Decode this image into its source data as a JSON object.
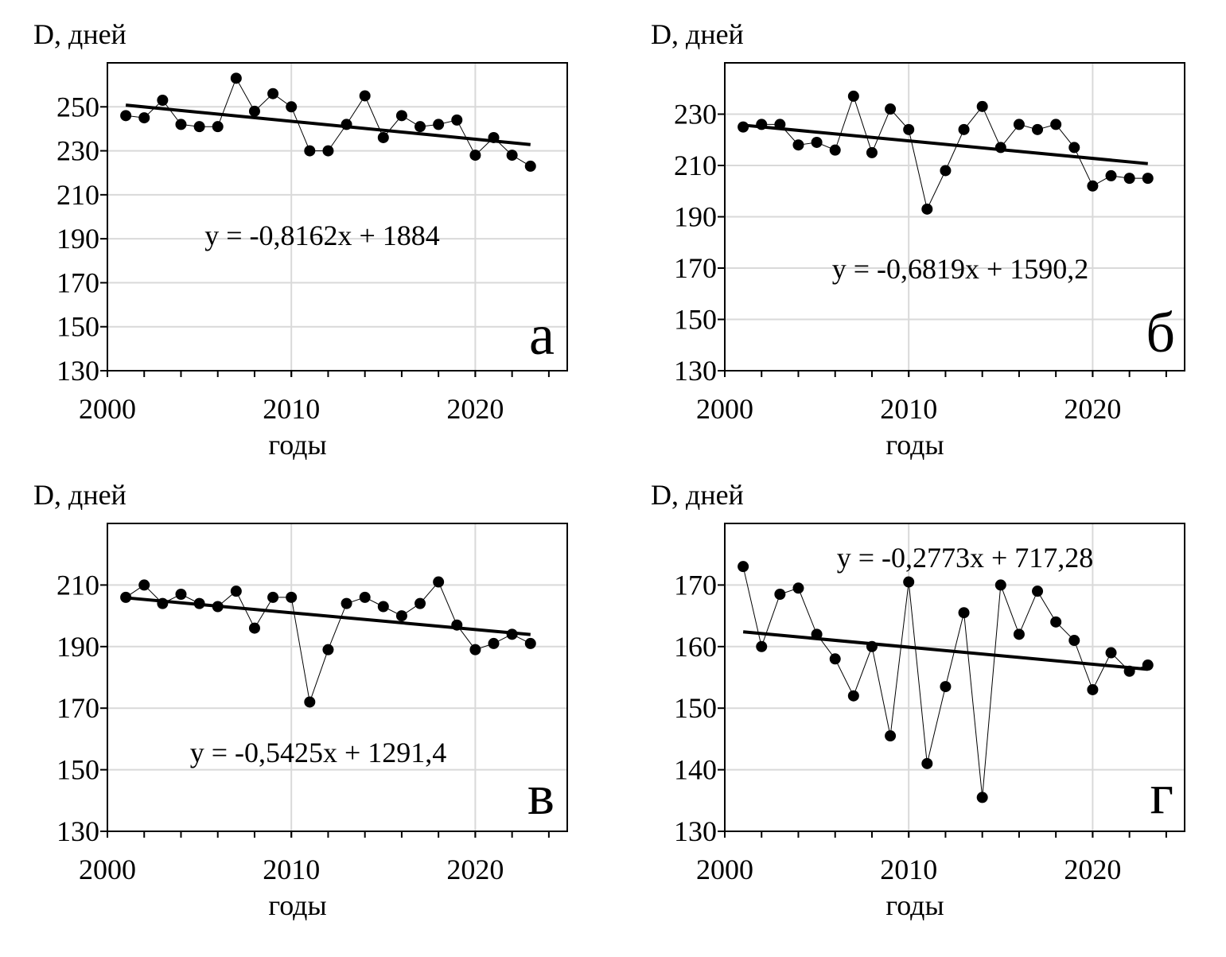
{
  "chart_data": [
    {
      "type": "line",
      "panel_letter": "а",
      "ylabel": "D, дней",
      "xlabel": "годы",
      "xlim": [
        2000,
        2025
      ],
      "ylim": [
        130,
        270
      ],
      "xticks": [
        2000,
        2010,
        2020
      ],
      "yticks": [
        130,
        150,
        170,
        190,
        210,
        230,
        250
      ],
      "grid": true,
      "equation": "y = -0,8162x + 1884",
      "trend": {
        "slope": -0.8162,
        "intercept": 1884
      },
      "series": [
        {
          "name": "D",
          "x": [
            2001,
            2002,
            2003,
            2004,
            2005,
            2006,
            2007,
            2008,
            2009,
            2010,
            2011,
            2012,
            2013,
            2014,
            2015,
            2016,
            2017,
            2018,
            2019,
            2020,
            2021,
            2022,
            2023
          ],
          "values": [
            246,
            245,
            253,
            242,
            241,
            241,
            263,
            248,
            256,
            250,
            230,
            230,
            242,
            255,
            236,
            246,
            241,
            242,
            244,
            228,
            236,
            228,
            223
          ]
        }
      ]
    },
    {
      "type": "line",
      "panel_letter": "б",
      "ylabel": "D, дней",
      "xlabel": "годы",
      "xlim": [
        2000,
        2025
      ],
      "ylim": [
        130,
        250
      ],
      "xticks": [
        2000,
        2010,
        2020
      ],
      "yticks": [
        130,
        150,
        170,
        190,
        210,
        230
      ],
      "grid": true,
      "equation": "y = -0,6819x + 1590,2",
      "trend": {
        "slope": -0.6819,
        "intercept": 1590.2
      },
      "series": [
        {
          "name": "D",
          "x": [
            2001,
            2002,
            2003,
            2004,
            2005,
            2006,
            2007,
            2008,
            2009,
            2010,
            2011,
            2012,
            2013,
            2014,
            2015,
            2016,
            2017,
            2018,
            2019,
            2020,
            2021,
            2022,
            2023
          ],
          "values": [
            225,
            226,
            226,
            218,
            219,
            216,
            237,
            215,
            232,
            224,
            193,
            208,
            224,
            233,
            217,
            226,
            224,
            226,
            217,
            202,
            206,
            205,
            205
          ]
        }
      ]
    },
    {
      "type": "line",
      "panel_letter": "в",
      "ylabel": "D, дней",
      "xlabel": "годы",
      "xlim": [
        2000,
        2025
      ],
      "ylim": [
        130,
        230
      ],
      "xticks": [
        2000,
        2010,
        2020
      ],
      "yticks": [
        130,
        150,
        170,
        190,
        210
      ],
      "grid": true,
      "equation": "y = -0,5425x + 1291,4",
      "trend": {
        "slope": -0.5425,
        "intercept": 1291.4
      },
      "series": [
        {
          "name": "D",
          "x": [
            2001,
            2002,
            2003,
            2004,
            2005,
            2006,
            2007,
            2008,
            2009,
            2010,
            2011,
            2012,
            2013,
            2014,
            2015,
            2016,
            2017,
            2018,
            2019,
            2020,
            2021,
            2022,
            2023
          ],
          "values": [
            206,
            210,
            204,
            207,
            204,
            203,
            208,
            196,
            206,
            206,
            172,
            189,
            204,
            206,
            203,
            200,
            204,
            211,
            197,
            189,
            191,
            194,
            191
          ]
        }
      ]
    },
    {
      "type": "line",
      "panel_letter": "г",
      "ylabel": "D, дней",
      "xlabel": "годы",
      "xlim": [
        2000,
        2025
      ],
      "ylim": [
        130,
        180
      ],
      "xticks": [
        2000,
        2010,
        2020
      ],
      "yticks": [
        130,
        140,
        150,
        160,
        170
      ],
      "grid": true,
      "equation": "y = -0,2773x + 717,28",
      "trend": {
        "slope": -0.2773,
        "intercept": 717.28
      },
      "series": [
        {
          "name": "D",
          "x": [
            2001,
            2002,
            2003,
            2004,
            2005,
            2006,
            2007,
            2008,
            2009,
            2010,
            2011,
            2012,
            2013,
            2014,
            2015,
            2016,
            2017,
            2018,
            2019,
            2020,
            2021,
            2022,
            2023
          ],
          "values": [
            173,
            160,
            168.5,
            169.5,
            162,
            158,
            152,
            160,
            145.5,
            170.5,
            141,
            153.5,
            165.5,
            135.5,
            170,
            162,
            169,
            164,
            161,
            153,
            159,
            156,
            157
          ]
        }
      ]
    }
  ]
}
